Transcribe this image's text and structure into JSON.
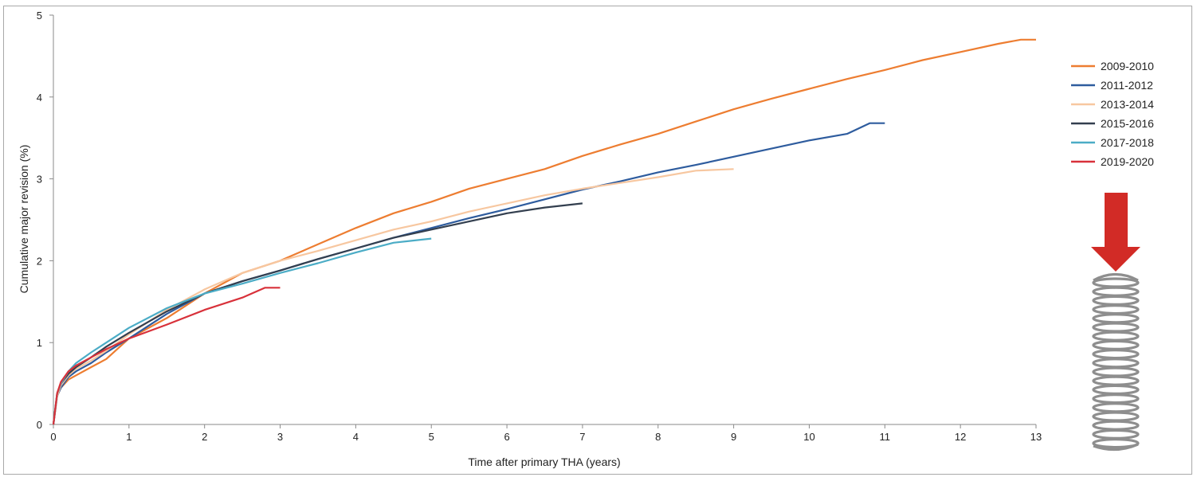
{
  "chart_data": {
    "type": "line",
    "title": "",
    "xlabel": "Time after primary THA (years)",
    "ylabel": "Cumulative major revision (%)",
    "xlim": [
      0,
      13
    ],
    "ylim": [
      0,
      5
    ],
    "x_ticks": [
      0,
      1,
      2,
      3,
      4,
      5,
      6,
      7,
      8,
      9,
      10,
      11,
      12,
      13
    ],
    "y_ticks": [
      0,
      1,
      2,
      3,
      4,
      5
    ],
    "grid": false,
    "legend_position": "right",
    "series": [
      {
        "name": "2009-2010",
        "color": "#ED7D31",
        "x": [
          0,
          0.05,
          0.1,
          0.2,
          0.3,
          0.5,
          0.7,
          1,
          1.5,
          2,
          2.5,
          3,
          3.5,
          4,
          4.5,
          5,
          5.5,
          6,
          6.5,
          7,
          7.5,
          8,
          8.5,
          9,
          9.5,
          10,
          10.5,
          11,
          11.5,
          12,
          12.5,
          12.8,
          13
        ],
        "y": [
          0,
          0.35,
          0.45,
          0.55,
          0.6,
          0.7,
          0.8,
          1.05,
          1.3,
          1.6,
          1.85,
          2.0,
          2.2,
          2.4,
          2.58,
          2.72,
          2.88,
          3.0,
          3.12,
          3.28,
          3.42,
          3.55,
          3.7,
          3.85,
          3.98,
          4.1,
          4.22,
          4.33,
          4.45,
          4.55,
          4.65,
          4.7,
          4.7
        ]
      },
      {
        "name": "2011-2012",
        "color": "#2E5C9E",
        "x": [
          0,
          0.05,
          0.1,
          0.2,
          0.3,
          0.5,
          0.7,
          1,
          1.5,
          2,
          2.5,
          3,
          3.5,
          4,
          4.5,
          5,
          5.5,
          6,
          6.5,
          7,
          7.5,
          8,
          8.5,
          9,
          9.5,
          10,
          10.5,
          10.8,
          11
        ],
        "y": [
          0,
          0.35,
          0.45,
          0.58,
          0.65,
          0.75,
          0.88,
          1.05,
          1.35,
          1.6,
          1.75,
          1.88,
          2.02,
          2.15,
          2.28,
          2.4,
          2.52,
          2.63,
          2.75,
          2.87,
          2.97,
          3.08,
          3.17,
          3.27,
          3.37,
          3.47,
          3.55,
          3.68,
          3.68
        ]
      },
      {
        "name": "2013-2014",
        "color": "#F7C7A0",
        "x": [
          0,
          0.05,
          0.1,
          0.2,
          0.3,
          0.5,
          0.7,
          1,
          1.5,
          2,
          2.5,
          3,
          3.5,
          4,
          4.5,
          5,
          5.5,
          6,
          6.5,
          7,
          7.5,
          8,
          8.5,
          9
        ],
        "y": [
          0,
          0.35,
          0.48,
          0.6,
          0.68,
          0.78,
          0.9,
          1.1,
          1.4,
          1.65,
          1.85,
          2.0,
          2.12,
          2.25,
          2.38,
          2.48,
          2.6,
          2.7,
          2.8,
          2.88,
          2.95,
          3.02,
          3.1,
          3.12
        ]
      },
      {
        "name": "2015-2016",
        "color": "#333F4F",
        "x": [
          0,
          0.05,
          0.1,
          0.2,
          0.3,
          0.5,
          0.7,
          1,
          1.5,
          2,
          2.5,
          3,
          3.5,
          4,
          4.5,
          5,
          5.5,
          6,
          6.5,
          7
        ],
        "y": [
          0,
          0.38,
          0.5,
          0.62,
          0.7,
          0.82,
          0.95,
          1.12,
          1.38,
          1.6,
          1.75,
          1.88,
          2.02,
          2.15,
          2.28,
          2.38,
          2.48,
          2.58,
          2.65,
          2.7
        ]
      },
      {
        "name": "2017-2018",
        "color": "#4BACC6",
        "x": [
          0,
          0.05,
          0.1,
          0.2,
          0.3,
          0.5,
          0.7,
          1,
          1.5,
          2,
          2.5,
          3,
          3.5,
          4,
          4.5,
          5
        ],
        "y": [
          0,
          0.38,
          0.5,
          0.65,
          0.75,
          0.88,
          1.0,
          1.18,
          1.42,
          1.6,
          1.72,
          1.85,
          1.97,
          2.1,
          2.22,
          2.27
        ]
      },
      {
        "name": "2019-2020",
        "color": "#D8313A",
        "x": [
          0,
          0.05,
          0.1,
          0.2,
          0.3,
          0.5,
          0.7,
          1,
          1.5,
          2,
          2.5,
          2.8,
          3
        ],
        "y": [
          0,
          0.38,
          0.52,
          0.65,
          0.72,
          0.82,
          0.92,
          1.05,
          1.22,
          1.4,
          1.55,
          1.67,
          1.67
        ]
      }
    ]
  },
  "decoration": {
    "arrow_color": "#D22B26",
    "spring_color": "#8E8E8E",
    "arrow_icon": "down-arrow-icon",
    "spring_icon": "coil-spring-icon"
  }
}
